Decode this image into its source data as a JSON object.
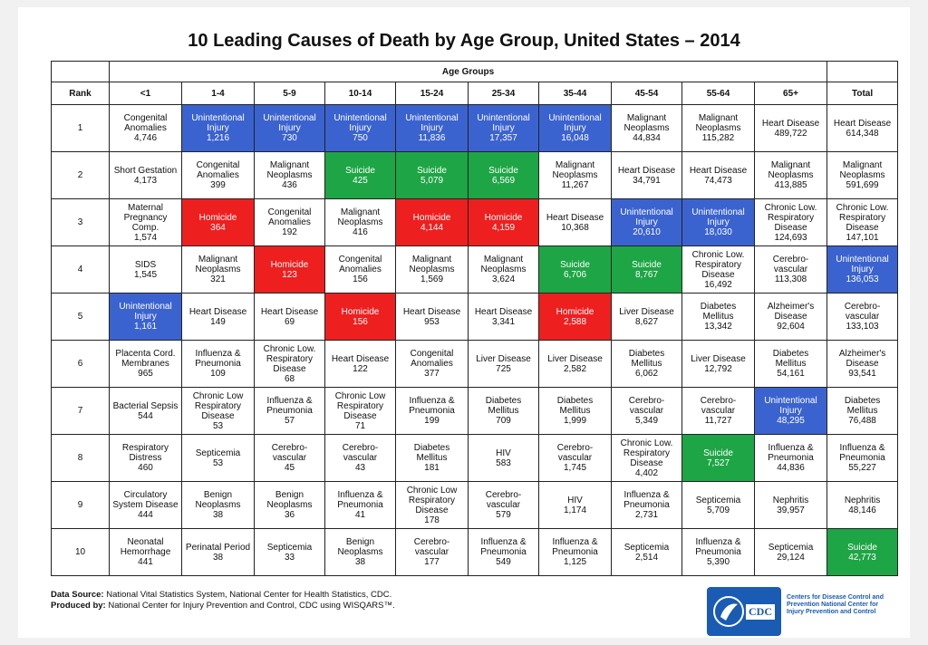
{
  "title": "10 Leading Causes of Death by Age Group, United States – 2014",
  "age_groups_label": "Age Groups",
  "headers": [
    "Rank",
    "<1",
    "1-4",
    "5-9",
    "10-14",
    "15-24",
    "25-34",
    "35-44",
    "45-54",
    "55-64",
    "65+",
    "Total"
  ],
  "colors": {
    "blue": "#3b63cf",
    "green": "#1ea545",
    "red": "#ee1f1f"
  },
  "rows": [
    {
      "rank": "1",
      "cells": [
        {
          "text": "Congenital Anomalies",
          "value": "4,746",
          "color": ""
        },
        {
          "text": "Unintentional Injury",
          "value": "1,216",
          "color": "blue"
        },
        {
          "text": "Unintentional Injury",
          "value": "730",
          "color": "blue"
        },
        {
          "text": "Unintentional Injury",
          "value": "750",
          "color": "blue"
        },
        {
          "text": "Unintentional Injury",
          "value": "11,836",
          "color": "blue"
        },
        {
          "text": "Unintentional Injury",
          "value": "17,357",
          "color": "blue"
        },
        {
          "text": "Unintentional Injury",
          "value": "16,048",
          "color": "blue"
        },
        {
          "text": "Malignant Neoplasms",
          "value": "44,834",
          "color": ""
        },
        {
          "text": "Malignant Neoplasms",
          "value": "115,282",
          "color": ""
        },
        {
          "text": "Heart Disease",
          "value": "489,722",
          "color": ""
        },
        {
          "text": "Heart Disease",
          "value": "614,348",
          "color": ""
        }
      ]
    },
    {
      "rank": "2",
      "cells": [
        {
          "text": "Short Gestation",
          "value": "4,173",
          "color": ""
        },
        {
          "text": "Congenital Anomalies",
          "value": "399",
          "color": ""
        },
        {
          "text": "Malignant Neoplasms",
          "value": "436",
          "color": ""
        },
        {
          "text": "Suicide",
          "value": "425",
          "color": "green"
        },
        {
          "text": "Suicide",
          "value": "5,079",
          "color": "green"
        },
        {
          "text": "Suicide",
          "value": "6,569",
          "color": "green"
        },
        {
          "text": "Malignant Neoplasms",
          "value": "11,267",
          "color": ""
        },
        {
          "text": "Heart Disease",
          "value": "34,791",
          "color": ""
        },
        {
          "text": "Heart Disease",
          "value": "74,473",
          "color": ""
        },
        {
          "text": "Malignant Neoplasms",
          "value": "413,885",
          "color": ""
        },
        {
          "text": "Malignant Neoplasms",
          "value": "591,699",
          "color": ""
        }
      ]
    },
    {
      "rank": "3",
      "cells": [
        {
          "text": "Maternal Pregnancy Comp.",
          "value": "1,574",
          "color": ""
        },
        {
          "text": "Homicide",
          "value": "364",
          "color": "red"
        },
        {
          "text": "Congenital Anomalies",
          "value": "192",
          "color": ""
        },
        {
          "text": "Malignant Neoplasms",
          "value": "416",
          "color": ""
        },
        {
          "text": "Homicide",
          "value": "4,144",
          "color": "red"
        },
        {
          "text": "Homicide",
          "value": "4,159",
          "color": "red"
        },
        {
          "text": "Heart Disease",
          "value": "10,368",
          "color": ""
        },
        {
          "text": "Unintentional Injury",
          "value": "20,610",
          "color": "blue"
        },
        {
          "text": "Unintentional Injury",
          "value": "18,030",
          "color": "blue"
        },
        {
          "text": "Chronic Low. Respiratory Disease",
          "value": "124,693",
          "color": ""
        },
        {
          "text": "Chronic Low. Respiratory Disease",
          "value": "147,101",
          "color": ""
        }
      ]
    },
    {
      "rank": "4",
      "cells": [
        {
          "text": "SIDS",
          "value": "1,545",
          "color": ""
        },
        {
          "text": "Malignant Neoplasms",
          "value": "321",
          "color": ""
        },
        {
          "text": "Homicide",
          "value": "123",
          "color": "red"
        },
        {
          "text": "Congenital Anomalies",
          "value": "156",
          "color": ""
        },
        {
          "text": "Malignant Neoplasms",
          "value": "1,569",
          "color": ""
        },
        {
          "text": "Malignant Neoplasms",
          "value": "3,624",
          "color": ""
        },
        {
          "text": "Suicide",
          "value": "6,706",
          "color": "green"
        },
        {
          "text": "Suicide",
          "value": "8,767",
          "color": "green"
        },
        {
          "text": "Chronic Low. Respiratory Disease",
          "value": "16,492",
          "color": ""
        },
        {
          "text": "Cerebro-vascular",
          "value": "113,308",
          "color": ""
        },
        {
          "text": "Unintentional Injury",
          "value": "136,053",
          "color": "blue"
        }
      ]
    },
    {
      "rank": "5",
      "cells": [
        {
          "text": "Unintentional Injury",
          "value": "1,161",
          "color": "blue"
        },
        {
          "text": "Heart Disease",
          "value": "149",
          "color": ""
        },
        {
          "text": "Heart Disease",
          "value": "69",
          "color": ""
        },
        {
          "text": "Homicide",
          "value": "156",
          "color": "red"
        },
        {
          "text": "Heart Disease",
          "value": "953",
          "color": ""
        },
        {
          "text": "Heart Disease",
          "value": "3,341",
          "color": ""
        },
        {
          "text": "Homicide",
          "value": "2,588",
          "color": "red"
        },
        {
          "text": "Liver Disease",
          "value": "8,627",
          "color": ""
        },
        {
          "text": "Diabetes Mellitus",
          "value": "13,342",
          "color": ""
        },
        {
          "text": "Alzheimer's Disease",
          "value": "92,604",
          "color": ""
        },
        {
          "text": "Cerebro-vascular",
          "value": "133,103",
          "color": ""
        }
      ]
    },
    {
      "rank": "6",
      "cells": [
        {
          "text": "Placenta Cord. Membranes",
          "value": "965",
          "color": ""
        },
        {
          "text": "Influenza & Pneumonia",
          "value": "109",
          "color": ""
        },
        {
          "text": "Chronic Low. Respiratory Disease",
          "value": "68",
          "color": ""
        },
        {
          "text": "Heart Disease",
          "value": "122",
          "color": ""
        },
        {
          "text": "Congenital Anomalies",
          "value": "377",
          "color": ""
        },
        {
          "text": "Liver Disease",
          "value": "725",
          "color": ""
        },
        {
          "text": "Liver Disease",
          "value": "2,582",
          "color": ""
        },
        {
          "text": "Diabetes Mellitus",
          "value": "6,062",
          "color": ""
        },
        {
          "text": "Liver Disease",
          "value": "12,792",
          "color": ""
        },
        {
          "text": "Diabetes Mellitus",
          "value": "54,161",
          "color": ""
        },
        {
          "text": "Alzheimer's Disease",
          "value": "93,541",
          "color": ""
        }
      ]
    },
    {
      "rank": "7",
      "cells": [
        {
          "text": "Bacterial Sepsis",
          "value": "544",
          "color": ""
        },
        {
          "text": "Chronic Low Respiratory Disease",
          "value": "53",
          "color": ""
        },
        {
          "text": "Influenza & Pneumonia",
          "value": "57",
          "color": ""
        },
        {
          "text": "Chronic Low Respiratory Disease",
          "value": "71",
          "color": ""
        },
        {
          "text": "Influenza & Pneumonia",
          "value": "199",
          "color": ""
        },
        {
          "text": "Diabetes Mellitus",
          "value": "709",
          "color": ""
        },
        {
          "text": "Diabetes Mellitus",
          "value": "1,999",
          "color": ""
        },
        {
          "text": "Cerebro-vascular",
          "value": "5,349",
          "color": ""
        },
        {
          "text": "Cerebro-vascular",
          "value": "11,727",
          "color": ""
        },
        {
          "text": "Unintentional Injury",
          "value": "48,295",
          "color": "blue"
        },
        {
          "text": "Diabetes Mellitus",
          "value": "76,488",
          "color": ""
        }
      ]
    },
    {
      "rank": "8",
      "cells": [
        {
          "text": "Respiratory Distress",
          "value": "460",
          "color": ""
        },
        {
          "text": "Septicemia",
          "value": "53",
          "color": ""
        },
        {
          "text": "Cerebro-vascular",
          "value": "45",
          "color": ""
        },
        {
          "text": "Cerebro-vascular",
          "value": "43",
          "color": ""
        },
        {
          "text": "Diabetes Mellitus",
          "value": "181",
          "color": ""
        },
        {
          "text": "HIV",
          "value": "583",
          "color": ""
        },
        {
          "text": "Cerebro-vascular",
          "value": "1,745",
          "color": ""
        },
        {
          "text": "Chronic Low. Respiratory Disease",
          "value": "4,402",
          "color": ""
        },
        {
          "text": "Suicide",
          "value": "7,527",
          "color": "green"
        },
        {
          "text": "Influenza & Pneumonia",
          "value": "44,836",
          "color": ""
        },
        {
          "text": "Influenza & Pneumonia",
          "value": "55,227",
          "color": ""
        }
      ]
    },
    {
      "rank": "9",
      "cells": [
        {
          "text": "Circulatory System Disease",
          "value": "444",
          "color": ""
        },
        {
          "text": "Benign Neoplasms",
          "value": "38",
          "color": ""
        },
        {
          "text": "Benign Neoplasms",
          "value": "36",
          "color": ""
        },
        {
          "text": "Influenza & Pneumonia",
          "value": "41",
          "color": ""
        },
        {
          "text": "Chronic Low Respiratory Disease",
          "value": "178",
          "color": ""
        },
        {
          "text": "Cerebro-vascular",
          "value": "579",
          "color": ""
        },
        {
          "text": "HIV",
          "value": "1,174",
          "color": ""
        },
        {
          "text": "Influenza & Pneumonia",
          "value": "2,731",
          "color": ""
        },
        {
          "text": "Septicemia",
          "value": "5,709",
          "color": ""
        },
        {
          "text": "Nephritis",
          "value": "39,957",
          "color": ""
        },
        {
          "text": "Nephritis",
          "value": "48,146",
          "color": ""
        }
      ]
    },
    {
      "rank": "10",
      "cells": [
        {
          "text": "Neonatal Hemorrhage",
          "value": "441",
          "color": ""
        },
        {
          "text": "Perinatal Period",
          "value": "38",
          "color": ""
        },
        {
          "text": "Septicemia",
          "value": "33",
          "color": ""
        },
        {
          "text": "Benign Neoplasms",
          "value": "38",
          "color": ""
        },
        {
          "text": "Cerebro-vascular",
          "value": "177",
          "color": ""
        },
        {
          "text": "Influenza & Pneumonia",
          "value": "549",
          "color": ""
        },
        {
          "text": "Influenza & Pneumonia",
          "value": "1,125",
          "color": ""
        },
        {
          "text": "Septicemia",
          "value": "2,514",
          "color": ""
        },
        {
          "text": "Influenza & Pneumonia",
          "value": "5,390",
          "color": ""
        },
        {
          "text": "Septicemia",
          "value": "29,124",
          "color": ""
        },
        {
          "text": "Suicide",
          "value": "42,773",
          "color": "green"
        }
      ]
    }
  ],
  "footer": {
    "source_label": "Data Source:",
    "source_text": "National Vital Statistics System, National Center for Health Statistics, CDC.",
    "produced_label": "Produced by:",
    "produced_text": "National Center for Injury Prevention and Control, CDC using WISQARS™."
  },
  "logo": {
    "mark": "CDC",
    "text": "Centers for Disease Control and Prevention National Center for Injury Prevention and Control"
  }
}
